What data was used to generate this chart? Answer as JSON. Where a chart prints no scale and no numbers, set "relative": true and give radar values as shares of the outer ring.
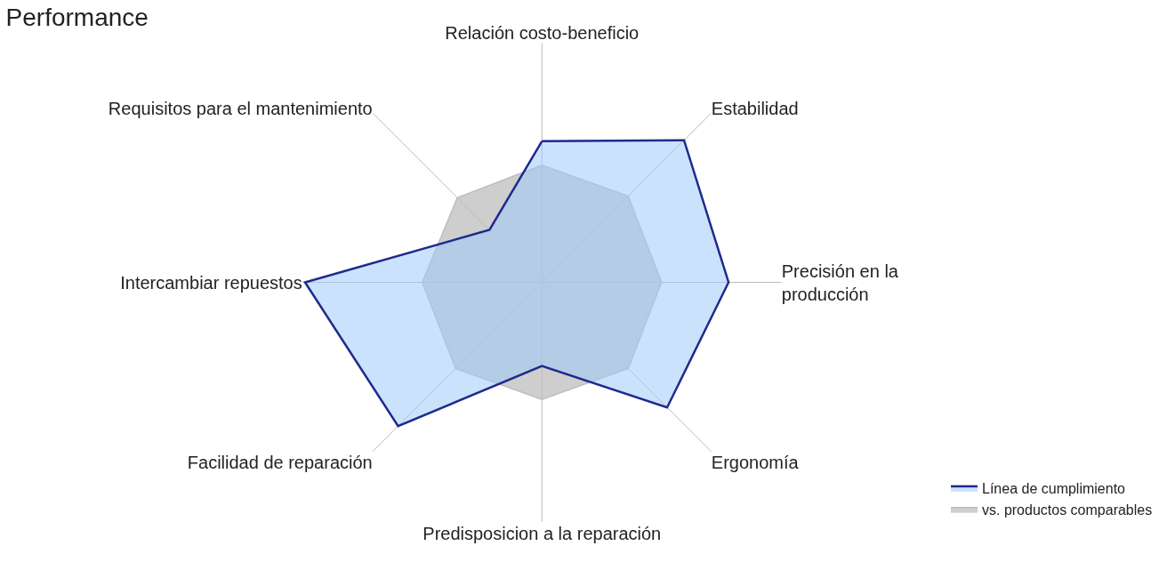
{
  "chart_data": {
    "type": "radar",
    "title": "Performance",
    "relative": true,
    "categories": [
      "Relación costo-beneficio",
      "Estabilidad",
      "Precisión en la producción",
      "Ergonomía",
      "Predisposicion a la reparación",
      "Facilidad de reparación",
      "Intercambiar repuestos",
      "Requisitos para el mantenimiento"
    ],
    "series": [
      {
        "name": "Línea de cumplimiento",
        "color": "#1f2a8c",
        "values": [
          0.59,
          0.84,
          0.78,
          0.74,
          0.35,
          0.85,
          0.99,
          0.31
        ]
      },
      {
        "name": "vs. productos comparables",
        "color": "#bdbdbd",
        "values": [
          0.49,
          0.51,
          0.5,
          0.51,
          0.49,
          0.51,
          0.5,
          0.5
        ]
      }
    ],
    "legend": "bottom right"
  }
}
